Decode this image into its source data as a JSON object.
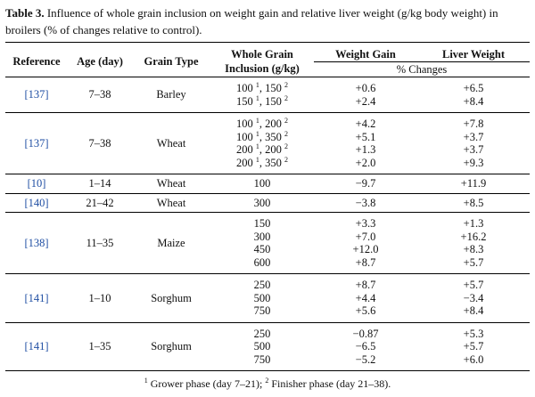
{
  "caption": {
    "label": "Table 3.",
    "text": "Influence of whole grain inclusion on weight gain and relative liver weight (g/kg body weight) in broilers (% of changes relative to control)."
  },
  "headers": {
    "reference": "Reference",
    "age": "Age (day)",
    "grain_type": "Grain Type",
    "inclusion_line1": "Whole Grain",
    "inclusion_line2": "Inclusion (g/kg)",
    "weight_gain": "Weight Gain",
    "liver_weight": "Liver Weight",
    "changes": "% Changes"
  },
  "groups": [
    {
      "reference": "[137]",
      "age": "7–38",
      "grain": "Barley",
      "rows": [
        {
          "incl": [
            [
              "100",
              "1"
            ],
            [
              "150",
              "2"
            ]
          ],
          "wg": "+0.6",
          "lw": "+6.5"
        },
        {
          "incl": [
            [
              "150",
              "1"
            ],
            [
              "150",
              "2"
            ]
          ],
          "wg": "+2.4",
          "lw": "+8.4"
        }
      ]
    },
    {
      "reference": "[137]",
      "age": "7–38",
      "grain": "Wheat",
      "rows": [
        {
          "incl": [
            [
              "100",
              "1"
            ],
            [
              "200",
              "2"
            ]
          ],
          "wg": "+4.2",
          "lw": "+7.8"
        },
        {
          "incl": [
            [
              "100",
              "1"
            ],
            [
              "350",
              "2"
            ]
          ],
          "wg": "+5.1",
          "lw": "+3.7"
        },
        {
          "incl": [
            [
              "200",
              "1"
            ],
            [
              "200",
              "2"
            ]
          ],
          "wg": "+1.3",
          "lw": "+3.7"
        },
        {
          "incl": [
            [
              "200",
              "1"
            ],
            [
              "350",
              "2"
            ]
          ],
          "wg": "+2.0",
          "lw": "+9.3"
        }
      ]
    },
    {
      "reference": "[10]",
      "age": "1–14",
      "grain": "Wheat",
      "rows": [
        {
          "incl": "100",
          "wg": "−9.7",
          "lw": "+11.9"
        }
      ]
    },
    {
      "reference": "[140]",
      "age": "21–42",
      "grain": "Wheat",
      "rows": [
        {
          "incl": "300",
          "wg": "−3.8",
          "lw": "+8.5"
        }
      ]
    },
    {
      "reference": "[138]",
      "age": "11–35",
      "grain": "Maize",
      "rows": [
        {
          "incl": "150",
          "wg": "+3.3",
          "lw": "+1.3"
        },
        {
          "incl": "300",
          "wg": "+7.0",
          "lw": "+16.2"
        },
        {
          "incl": "450",
          "wg": "+12.0",
          "lw": "+8.3"
        },
        {
          "incl": "600",
          "wg": "+8.7",
          "lw": "+5.7"
        }
      ]
    },
    {
      "reference": "[141]",
      "age": "1–10",
      "grain": "Sorghum",
      "rows": [
        {
          "incl": "250",
          "wg": "+8.7",
          "lw": "+5.7"
        },
        {
          "incl": "500",
          "wg": "+4.4",
          "lw": "−3.4"
        },
        {
          "incl": "750",
          "wg": "+5.6",
          "lw": "+8.4"
        }
      ]
    },
    {
      "reference": "[141]",
      "age": "1–35",
      "grain": "Sorghum",
      "rows": [
        {
          "incl": "250",
          "wg": "−0.87",
          "lw": "+5.3"
        },
        {
          "incl": "500",
          "wg": "−6.5",
          "lw": "+5.7"
        },
        {
          "incl": "750",
          "wg": "−5.2",
          "lw": "+6.0"
        }
      ]
    }
  ],
  "footnote": {
    "mark1": "1",
    "text1": "Grower phase (day 7–21);",
    "mark2": "2",
    "text2": "Finisher phase (day 21–38)."
  }
}
